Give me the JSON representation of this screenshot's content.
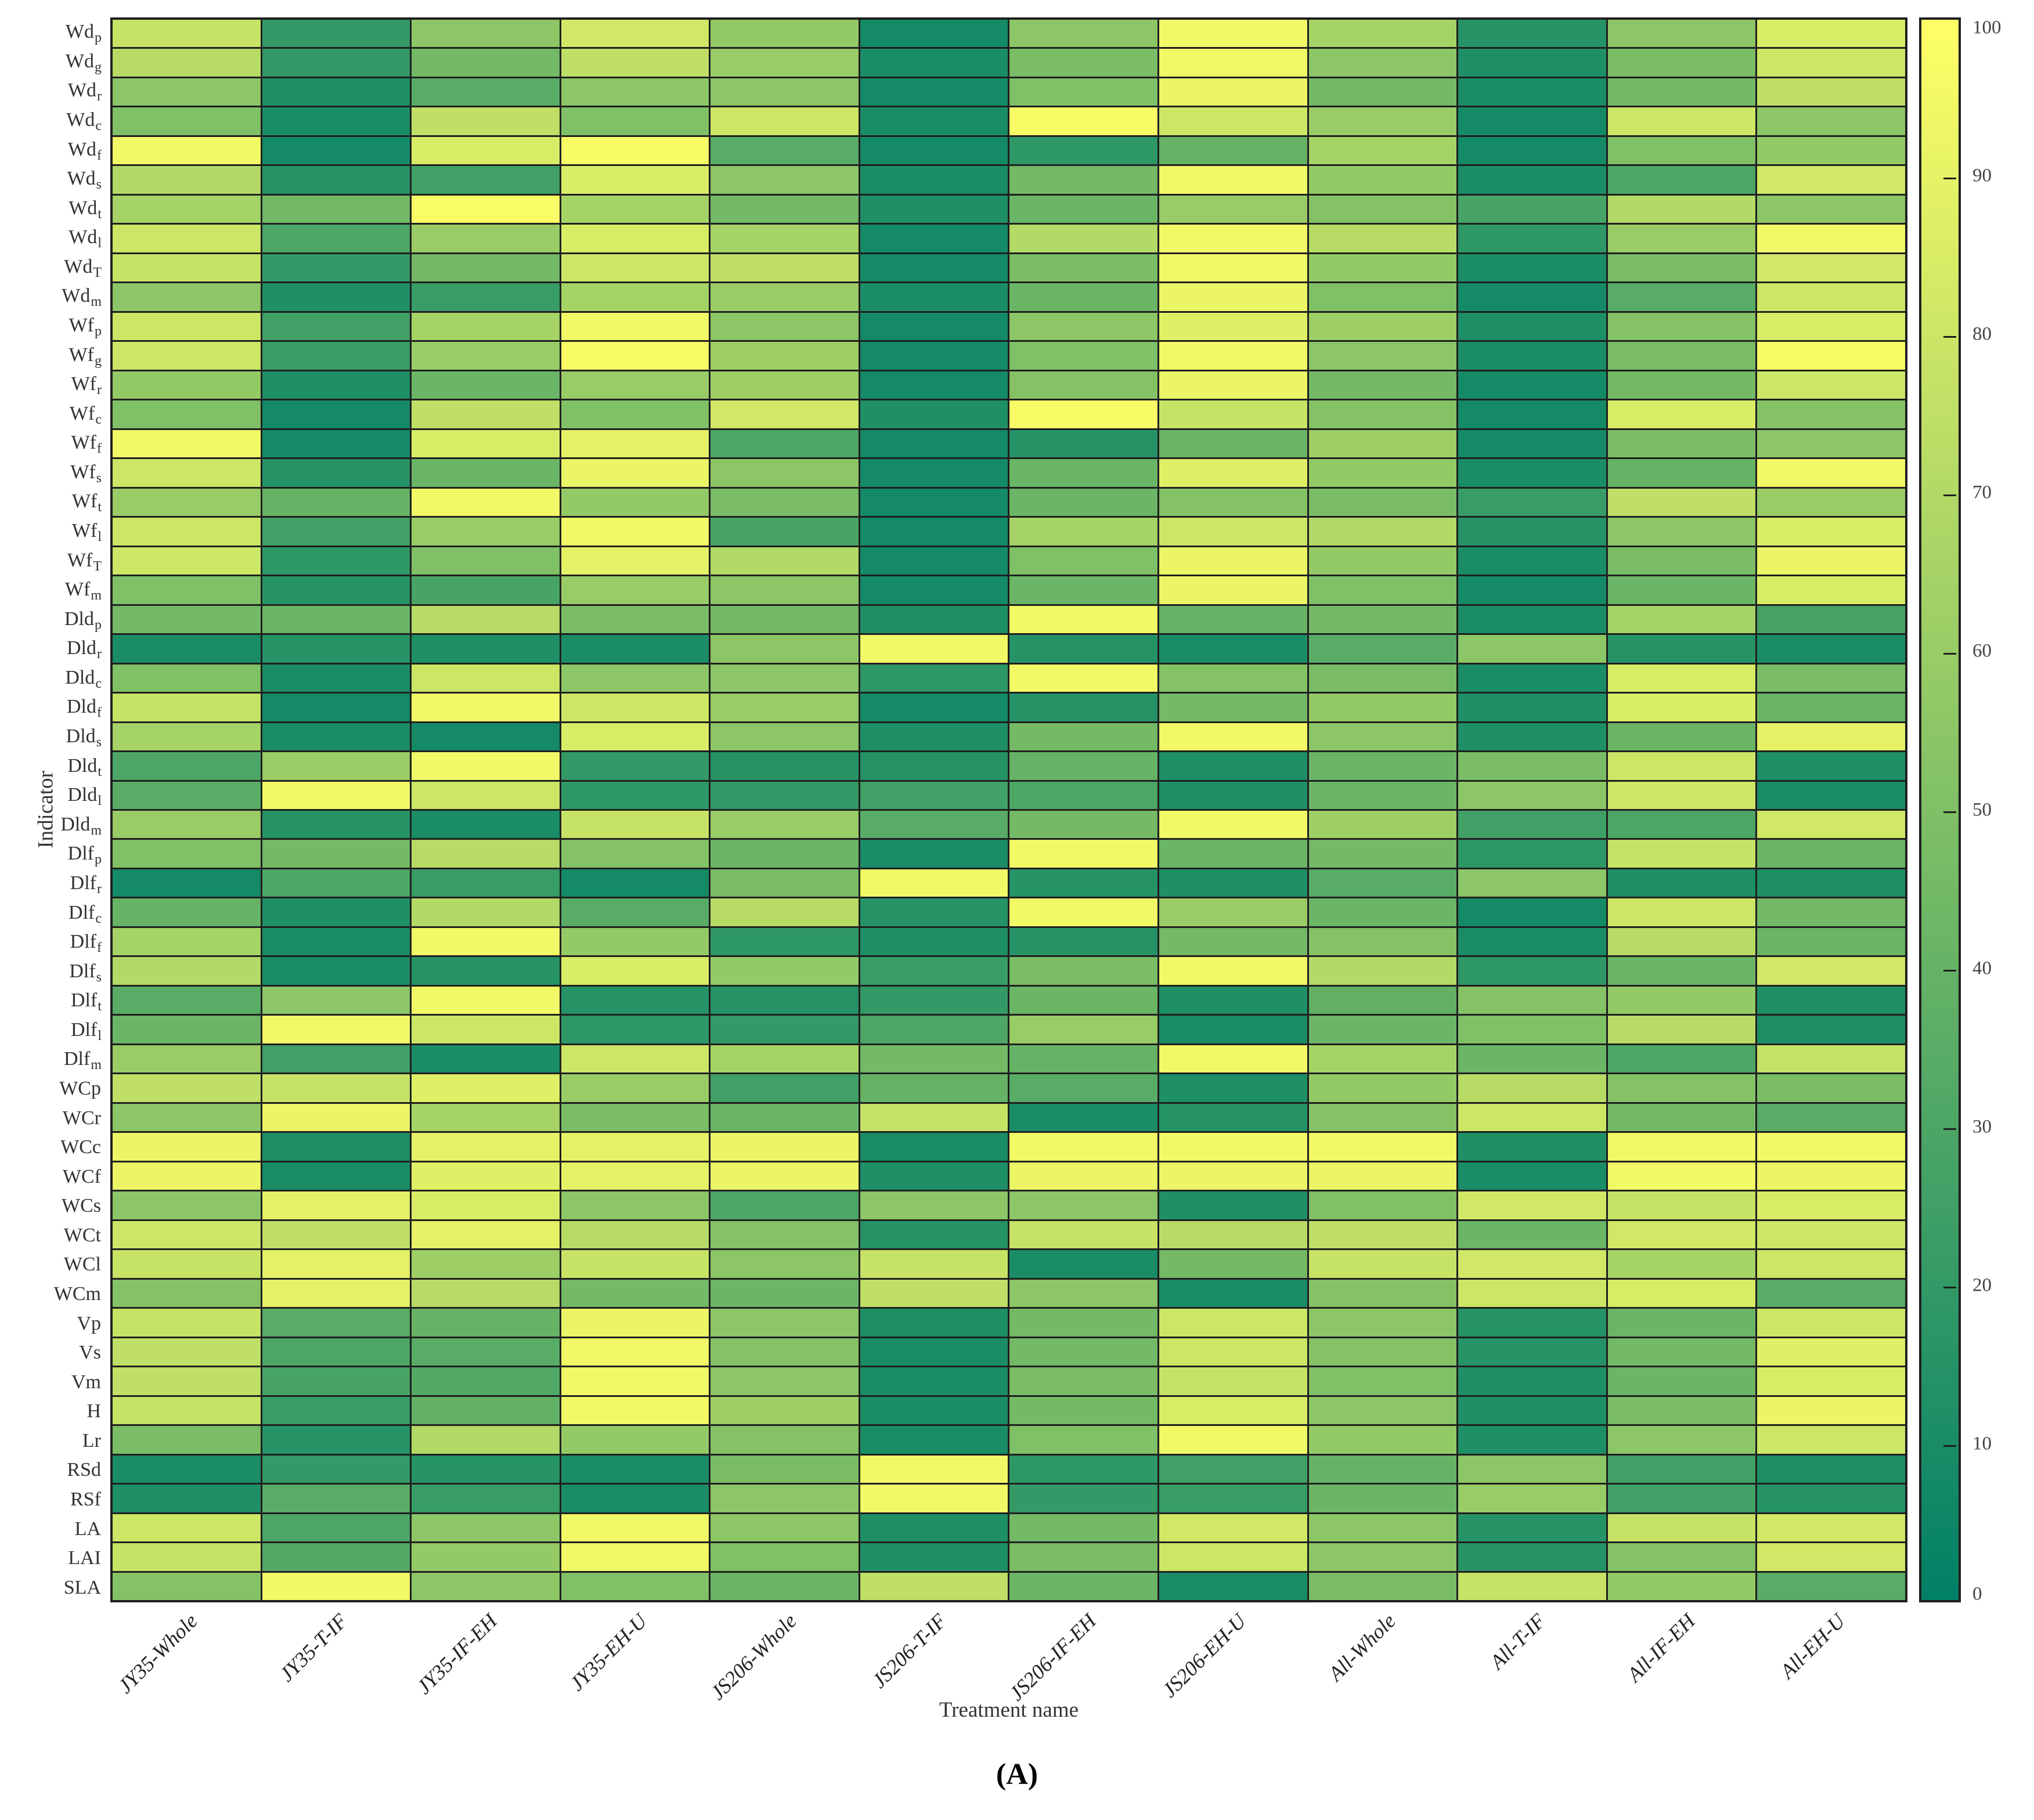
{
  "figure": {
    "caption": "(A)",
    "x_axis_title": "Treatment name",
    "y_axis_title": "Indicator"
  },
  "chart_data": {
    "type": "heatmap",
    "title": "",
    "xlabel": "Treatment name",
    "ylabel": "Indicator",
    "grid": true,
    "grid_line_color": "#1f1f1f",
    "legend_position": "right-colorbar",
    "columns": [
      "JY35-Whole",
      "JY35-T-IF",
      "JY35-IF-EH",
      "JY35-EH-U",
      "JS206-Whole",
      "JS206-T-IF",
      "JS206-IF-EH",
      "JS206-EH-U",
      "All-Whole",
      "All-T-IF",
      "All-IF-EH",
      "All-EH-U"
    ],
    "rows": [
      {
        "base": "Wd",
        "sub": "p"
      },
      {
        "base": "Wd",
        "sub": "g"
      },
      {
        "base": "Wd",
        "sub": "r"
      },
      {
        "base": "Wd",
        "sub": "c"
      },
      {
        "base": "Wd",
        "sub": "f"
      },
      {
        "base": "Wd",
        "sub": "s"
      },
      {
        "base": "Wd",
        "sub": "t"
      },
      {
        "base": "Wd",
        "sub": "l"
      },
      {
        "base": "Wd",
        "sub": "T"
      },
      {
        "base": "Wd",
        "sub": "m"
      },
      {
        "base": "Wf",
        "sub": "p"
      },
      {
        "base": "Wf",
        "sub": "g"
      },
      {
        "base": "Wf",
        "sub": "r"
      },
      {
        "base": "Wf",
        "sub": "c"
      },
      {
        "base": "Wf",
        "sub": "f"
      },
      {
        "base": "Wf",
        "sub": "s"
      },
      {
        "base": "Wf",
        "sub": "t"
      },
      {
        "base": "Wf",
        "sub": "l"
      },
      {
        "base": "Wf",
        "sub": "T"
      },
      {
        "base": "Wf",
        "sub": "m"
      },
      {
        "base": "Dld",
        "sub": "p"
      },
      {
        "base": "Dld",
        "sub": "r"
      },
      {
        "base": "Dld",
        "sub": "c"
      },
      {
        "base": "Dld",
        "sub": "f"
      },
      {
        "base": "Dld",
        "sub": "s"
      },
      {
        "base": "Dld",
        "sub": "t"
      },
      {
        "base": "Dld",
        "sub": "l"
      },
      {
        "base": "Dld",
        "sub": "m"
      },
      {
        "base": "Dlf",
        "sub": "p"
      },
      {
        "base": "Dlf",
        "sub": "r"
      },
      {
        "base": "Dlf",
        "sub": "c"
      },
      {
        "base": "Dlf",
        "sub": "f"
      },
      {
        "base": "Dlf",
        "sub": "s"
      },
      {
        "base": "Dlf",
        "sub": "t"
      },
      {
        "base": "Dlf",
        "sub": "l"
      },
      {
        "base": "Dlf",
        "sub": "m"
      },
      {
        "base": "WCp",
        "sub": ""
      },
      {
        "base": "WCr",
        "sub": ""
      },
      {
        "base": "WCc",
        "sub": ""
      },
      {
        "base": "WCf",
        "sub": ""
      },
      {
        "base": "WCs",
        "sub": ""
      },
      {
        "base": "WCt",
        "sub": ""
      },
      {
        "base": "WCl",
        "sub": ""
      },
      {
        "base": "WCm",
        "sub": ""
      },
      {
        "base": "Vp",
        "sub": ""
      },
      {
        "base": "Vs",
        "sub": ""
      },
      {
        "base": "Vm",
        "sub": ""
      },
      {
        "base": "H",
        "sub": ""
      },
      {
        "base": "Lr",
        "sub": ""
      },
      {
        "base": "RSd",
        "sub": ""
      },
      {
        "base": "RSf",
        "sub": ""
      },
      {
        "base": "LA",
        "sub": ""
      },
      {
        "base": "LAI",
        "sub": ""
      },
      {
        "base": "SLA",
        "sub": ""
      }
    ],
    "values": [
      [
        78,
        20,
        55,
        82,
        58,
        8,
        55,
        95,
        65,
        15,
        55,
        85
      ],
      [
        72,
        20,
        45,
        75,
        60,
        10,
        48,
        95,
        55,
        12,
        48,
        80
      ],
      [
        55,
        12,
        35,
        55,
        55,
        8,
        50,
        92,
        45,
        10,
        45,
        75
      ],
      [
        50,
        10,
        75,
        50,
        80,
        10,
        97,
        80,
        60,
        8,
        80,
        55
      ],
      [
        95,
        8,
        85,
        97,
        35,
        8,
        18,
        40,
        65,
        8,
        50,
        58
      ],
      [
        70,
        15,
        25,
        85,
        55,
        10,
        45,
        95,
        58,
        10,
        30,
        82
      ],
      [
        65,
        45,
        98,
        65,
        45,
        12,
        42,
        60,
        52,
        28,
        70,
        55
      ],
      [
        80,
        30,
        60,
        85,
        65,
        8,
        70,
        95,
        72,
        18,
        60,
        95
      ],
      [
        78,
        20,
        45,
        80,
        75,
        8,
        48,
        95,
        58,
        10,
        48,
        82
      ],
      [
        55,
        12,
        22,
        65,
        60,
        10,
        42,
        92,
        50,
        8,
        35,
        80
      ],
      [
        80,
        25,
        65,
        95,
        55,
        8,
        55,
        88,
        62,
        12,
        52,
        85
      ],
      [
        80,
        22,
        60,
        97,
        62,
        8,
        50,
        95,
        55,
        10,
        48,
        97
      ],
      [
        58,
        12,
        42,
        60,
        62,
        8,
        52,
        92,
        45,
        8,
        45,
        80
      ],
      [
        50,
        8,
        75,
        50,
        82,
        12,
        97,
        78,
        52,
        8,
        85,
        52
      ],
      [
        95,
        8,
        85,
        90,
        30,
        8,
        15,
        42,
        62,
        8,
        48,
        55
      ],
      [
        80,
        15,
        42,
        92,
        55,
        8,
        42,
        88,
        58,
        10,
        40,
        95
      ],
      [
        60,
        40,
        95,
        58,
        48,
        8,
        42,
        52,
        48,
        22,
        75,
        60
      ],
      [
        80,
        25,
        60,
        95,
        28,
        8,
        65,
        80,
        70,
        15,
        55,
        85
      ],
      [
        80,
        18,
        50,
        90,
        70,
        8,
        50,
        92,
        58,
        10,
        48,
        92
      ],
      [
        50,
        15,
        28,
        60,
        55,
        8,
        42,
        92,
        50,
        8,
        42,
        85
      ],
      [
        45,
        42,
        72,
        48,
        45,
        12,
        95,
        40,
        45,
        10,
        65,
        28
      ],
      [
        10,
        15,
        12,
        10,
        55,
        95,
        15,
        10,
        35,
        55,
        15,
        10
      ],
      [
        50,
        10,
        80,
        55,
        55,
        18,
        95,
        52,
        48,
        10,
        85,
        48
      ],
      [
        78,
        8,
        95,
        80,
        60,
        8,
        15,
        45,
        58,
        12,
        85,
        42
      ],
      [
        65,
        10,
        8,
        85,
        55,
        12,
        45,
        95,
        55,
        12,
        42,
        90
      ],
      [
        30,
        60,
        95,
        20,
        15,
        15,
        40,
        12,
        42,
        48,
        80,
        12
      ],
      [
        35,
        95,
        80,
        18,
        20,
        25,
        30,
        12,
        42,
        55,
        80,
        10
      ],
      [
        60,
        15,
        10,
        78,
        60,
        35,
        45,
        95,
        62,
        25,
        30,
        82
      ],
      [
        50,
        45,
        72,
        52,
        42,
        10,
        95,
        42,
        45,
        18,
        78,
        42
      ],
      [
        8,
        30,
        22,
        8,
        48,
        95,
        15,
        12,
        35,
        55,
        12,
        12
      ],
      [
        40,
        12,
        70,
        35,
        72,
        15,
        95,
        60,
        42,
        8,
        80,
        45
      ],
      [
        65,
        10,
        95,
        58,
        18,
        12,
        15,
        45,
        52,
        10,
        72,
        42
      ],
      [
        70,
        10,
        15,
        85,
        58,
        22,
        48,
        95,
        70,
        18,
        42,
        82
      ],
      [
        35,
        55,
        95,
        15,
        15,
        20,
        42,
        12,
        38,
        52,
        58,
        12
      ],
      [
        42,
        95,
        80,
        18,
        20,
        30,
        60,
        10,
        42,
        50,
        72,
        12
      ],
      [
        60,
        25,
        10,
        80,
        65,
        45,
        40,
        95,
        65,
        42,
        30,
        78
      ],
      [
        75,
        78,
        88,
        60,
        25,
        40,
        35,
        12,
        58,
        72,
        52,
        48
      ],
      [
        55,
        92,
        65,
        48,
        42,
        78,
        10,
        15,
        52,
        80,
        45,
        35
      ],
      [
        92,
        12,
        90,
        90,
        92,
        10,
        95,
        95,
        95,
        12,
        95,
        95
      ],
      [
        92,
        10,
        88,
        90,
        92,
        12,
        92,
        92,
        92,
        10,
        95,
        92
      ],
      [
        55,
        90,
        85,
        55,
        30,
        55,
        55,
        12,
        50,
        82,
        78,
        85
      ],
      [
        80,
        75,
        90,
        72,
        52,
        15,
        78,
        72,
        75,
        42,
        82,
        80
      ],
      [
        78,
        90,
        62,
        78,
        55,
        78,
        10,
        45,
        78,
        82,
        65,
        80
      ],
      [
        52,
        90,
        72,
        45,
        42,
        75,
        55,
        10,
        52,
        80,
        85,
        35
      ],
      [
        78,
        35,
        40,
        92,
        55,
        12,
        45,
        80,
        55,
        15,
        42,
        80
      ],
      [
        75,
        30,
        35,
        95,
        52,
        10,
        45,
        80,
        52,
        15,
        45,
        88
      ],
      [
        75,
        28,
        32,
        95,
        55,
        10,
        48,
        78,
        50,
        12,
        42,
        85
      ],
      [
        78,
        22,
        38,
        95,
        62,
        10,
        45,
        85,
        55,
        12,
        48,
        92
      ],
      [
        48,
        15,
        70,
        58,
        52,
        10,
        50,
        95,
        58,
        12,
        55,
        80
      ],
      [
        10,
        20,
        15,
        10,
        48,
        95,
        18,
        25,
        40,
        55,
        25,
        12
      ],
      [
        12,
        35,
        22,
        10,
        55,
        95,
        20,
        22,
        42,
        60,
        25,
        15
      ],
      [
        80,
        30,
        55,
        95,
        55,
        12,
        45,
        82,
        55,
        15,
        78,
        82
      ],
      [
        78,
        32,
        58,
        95,
        50,
        12,
        48,
        80,
        55,
        15,
        52,
        82
      ],
      [
        52,
        95,
        55,
        50,
        42,
        75,
        42,
        10,
        48,
        78,
        58,
        35
      ]
    ],
    "colorbar": {
      "min": 0,
      "max": 100,
      "tick_labels": [
        0,
        10,
        20,
        30,
        40,
        50,
        60,
        70,
        80,
        90,
        100
      ],
      "colormap": "summer",
      "color_min": "#008066",
      "color_max": "#ffff66"
    }
  }
}
